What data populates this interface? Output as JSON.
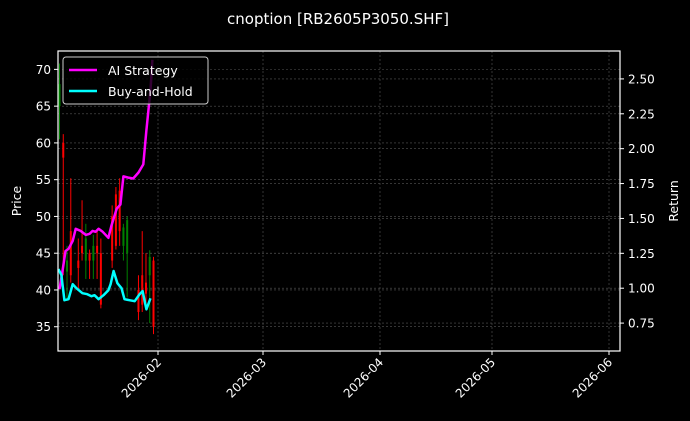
{
  "chart_data": {
    "type": "line",
    "title": "cnoption [RB2605P3050.SHF]",
    "xlabel": "",
    "ylabel": "Price",
    "y2label": "Return",
    "ylim": [
      31.7,
      72.5
    ],
    "y2lim": [
      0.55,
      2.7
    ],
    "xlim": [
      "2026-01-05",
      "2026-06-03"
    ],
    "grid": true,
    "legend_position": "upper left",
    "x_ticks": [
      "2026-02",
      "2026-03",
      "2026-04",
      "2026-05",
      "2026-06"
    ],
    "y_ticks": [
      35,
      40,
      45,
      50,
      55,
      60,
      65,
      70
    ],
    "y2_ticks": [
      "0.75",
      "1.00",
      "1.25",
      "1.50",
      "1.75",
      "2.00",
      "2.25",
      "2.50"
    ],
    "colors": {
      "up": "#008000",
      "down": "#ff0000",
      "ai": "#ff00ff",
      "bh": "#00ffff",
      "grid": "#555555",
      "axis": "#ffffff"
    },
    "candles": {
      "columns": [
        "day_offset",
        "open",
        "high",
        "low",
        "close"
      ],
      "rows": [
        [
          0,
          65.0,
          70.8,
          60.5,
          68.0
        ],
        [
          1,
          60.0,
          61.2,
          42.0,
          58.0
        ],
        [
          2,
          42.5,
          46.0,
          38.5,
          44.0
        ],
        [
          3,
          48.0,
          55.2,
          41.0,
          42.0
        ],
        [
          5,
          44.0,
          47.0,
          40.0,
          43.0
        ],
        [
          6,
          46.0,
          52.2,
          44.0,
          45.0
        ],
        [
          7,
          44.0,
          49.0,
          41.5,
          47.0
        ],
        [
          8,
          45.0,
          45.5,
          41.5,
          44.0
        ],
        [
          9,
          44.0,
          47.5,
          41.5,
          46.0
        ],
        [
          10,
          46.0,
          48.0,
          41.5,
          45.0
        ],
        [
          11,
          45.0,
          47.0,
          37.5,
          38.0
        ],
        [
          14,
          50.0,
          51.5,
          43.0,
          44.0
        ],
        [
          15,
          53.0,
          54.0,
          45.5,
          46.0
        ],
        [
          16,
          53.5,
          55.2,
          46.0,
          48.0
        ],
        [
          17,
          46.0,
          49.0,
          44.0,
          48.5
        ],
        [
          18,
          45.0,
          50.0,
          39.0,
          49.5
        ],
        [
          21,
          40.0,
          42.0,
          35.9,
          37.0
        ],
        [
          22,
          42.0,
          48.0,
          37.0,
          38.0
        ],
        [
          23,
          41.0,
          45.0,
          38.0,
          39.5
        ],
        [
          24,
          42.0,
          45.4,
          35.5,
          44.5
        ],
        [
          25,
          44.0,
          44.5,
          34.0,
          35.0
        ]
      ]
    },
    "series": [
      {
        "name": "AI Strategy",
        "axis": "right",
        "color": "#ff00ff",
        "day_offset": [
          0,
          0.8,
          1.6,
          2.4,
          3.5,
          4.3,
          5.6,
          7,
          8,
          8.8,
          9.6,
          10.4,
          11.5,
          13,
          13.8,
          15.2,
          16.2,
          17,
          18.3,
          19.6,
          21,
          22.3,
          23.1,
          24.2,
          24.7
        ],
        "values": [
          0.993,
          1.123,
          1.267,
          1.282,
          1.339,
          1.426,
          1.411,
          1.382,
          1.39,
          1.411,
          1.404,
          1.426,
          1.404,
          1.361,
          1.447,
          1.57,
          1.599,
          1.801,
          1.793,
          1.786,
          1.829,
          1.887,
          2.132,
          2.421,
          2.637
        ]
      },
      {
        "name": "Buy-and-Hold",
        "axis": "right",
        "color": "#00ffff",
        "day_offset": [
          -0.3,
          0.5,
          1.3,
          2.4,
          3.5,
          4.5,
          6.1,
          7.4,
          8.5,
          9.3,
          10.4,
          11.7,
          13,
          13.6,
          14.4,
          15.4,
          16.5,
          17.3,
          18.6,
          20,
          21.3,
          22.1,
          23.1,
          24.2
        ],
        "values": [
          1.137,
          1.094,
          0.914,
          0.921,
          1.029,
          1.0,
          0.964,
          0.957,
          0.943,
          0.95,
          0.921,
          0.95,
          0.986,
          1.029,
          1.123,
          1.036,
          1.0,
          0.921,
          0.914,
          0.907,
          0.957,
          0.979,
          0.849,
          0.928
        ]
      }
    ]
  },
  "legend": {
    "items": [
      {
        "label": "AI Strategy"
      },
      {
        "label": "Buy-and-Hold"
      }
    ]
  }
}
